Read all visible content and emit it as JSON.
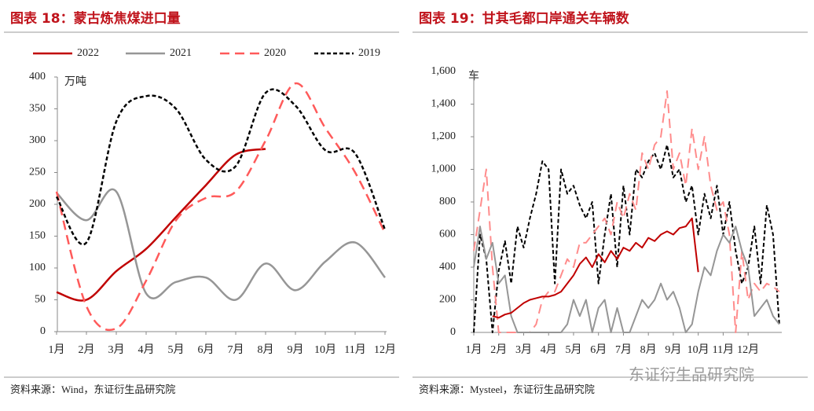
{
  "chart_data": [
    {
      "type": "line",
      "title": "图表 18：蒙古炼焦煤进口量",
      "ylabel": "万吨",
      "source": "资料来源：Wind，东证衍生品研究院",
      "categories": [
        "1月",
        "2月",
        "3月",
        "4月",
        "5月",
        "6月",
        "7月",
        "8月",
        "9月",
        "10月",
        "11月",
        "12月"
      ],
      "ylim": [
        0,
        400
      ],
      "yticks": [
        0,
        50,
        100,
        150,
        200,
        250,
        300,
        350,
        400
      ],
      "smooth": true,
      "series": [
        {
          "name": "2022",
          "color": "#c00000",
          "dash": "solid",
          "values": [
            62,
            50,
            95,
            130,
            180,
            230,
            278,
            287,
            null,
            null,
            null,
            null
          ]
        },
        {
          "name": "2021",
          "color": "#969696",
          "dash": "solid",
          "values": [
            218,
            175,
            220,
            60,
            78,
            85,
            50,
            107,
            65,
            110,
            140,
            85
          ]
        },
        {
          "name": "2020",
          "color": "#ff5a5a",
          "dash": "dashed",
          "values": [
            220,
            40,
            5,
            80,
            175,
            210,
            220,
            300,
            390,
            320,
            250,
            155
          ]
        },
        {
          "name": "2019",
          "color": "#000000",
          "dash": "dotted",
          "values": [
            212,
            140,
            330,
            370,
            350,
            270,
            260,
            375,
            355,
            285,
            280,
            160
          ]
        }
      ]
    },
    {
      "type": "line",
      "title": "图表 19：甘其毛都口岸通关车辆数",
      "ylabel": "车",
      "source": "资料来源：Mysteel，东证衍生品研究院",
      "x": [
        1,
        1.25,
        1.5,
        1.75,
        2,
        2.25,
        2.5,
        2.75,
        3,
        3.25,
        3.5,
        3.75,
        4,
        4.25,
        4.5,
        4.75,
        5,
        5.25,
        5.5,
        5.75,
        6,
        6.25,
        6.5,
        6.75,
        7,
        7.25,
        7.5,
        7.75,
        8,
        8.25,
        8.5,
        8.75,
        9,
        9.25,
        9.5,
        9.75,
        10,
        10.25,
        10.5,
        10.75,
        11,
        11.25,
        11.5,
        11.75,
        12,
        12.25,
        12.5,
        12.75,
        13,
        13.25
      ],
      "xlim": [
        1,
        13.35
      ],
      "xticks": [
        {
          "value": 1,
          "label": "1月"
        },
        {
          "value": 2,
          "label": "2月"
        },
        {
          "value": 3,
          "label": "3月"
        },
        {
          "value": 4,
          "label": "4月"
        },
        {
          "value": 5,
          "label": "5月"
        },
        {
          "value": 6,
          "label": "6月"
        },
        {
          "value": 7,
          "label": "7月"
        },
        {
          "value": 8,
          "label": "8月"
        },
        {
          "value": 9,
          "label": "9月"
        },
        {
          "value": 10,
          "label": "10月"
        },
        {
          "value": 11,
          "label": "11月"
        },
        {
          "value": 12,
          "label": "12月"
        }
      ],
      "ylim": [
        0,
        1600
      ],
      "yticks": [
        0,
        200,
        400,
        600,
        800,
        {
          "value": 1000,
          "label": "1,000"
        },
        {
          "value": 1200,
          "label": "1,200"
        },
        {
          "value": 1400,
          "label": "1,400"
        },
        {
          "value": 1600,
          "label": "1,600"
        }
      ],
      "smooth": false,
      "series": [
        {
          "name": "2019",
          "color": "#000000",
          "dash": "dotted",
          "values": [
            0,
            600,
            450,
            0,
            380,
            560,
            300,
            650,
            520,
            700,
            850,
            1050,
            1000,
            300,
            1000,
            850,
            900,
            780,
            700,
            800,
            300,
            600,
            850,
            400,
            900,
            600,
            1000,
            950,
            1050,
            1100,
            1000,
            1150,
            950,
            1000,
            800,
            900,
            600,
            850,
            700,
            900,
            600,
            800,
            500,
            300,
            400,
            650,
            300,
            780,
            600,
            50
          ]
        },
        {
          "name": "2020",
          "color": "#ff8c8c",
          "dash": "dashed",
          "values": [
            500,
            750,
            1000,
            400,
            0,
            0,
            0,
            0,
            0,
            0,
            50,
            200,
            250,
            250,
            350,
            450,
            400,
            550,
            550,
            600,
            650,
            700,
            600,
            800,
            700,
            850,
            750,
            1100,
            1000,
            1150,
            1200,
            1480,
            1000,
            1100,
            900,
            1250,
            1000,
            1200,
            900,
            750,
            800,
            600,
            0,
            500,
            200,
            300,
            250,
            300,
            280,
            250
          ]
        },
        {
          "name": "2021",
          "color": "#969696",
          "dash": "solid",
          "values": [
            400,
            650,
            450,
            550,
            300,
            350,
            100,
            0,
            0,
            0,
            0,
            0,
            0,
            0,
            0,
            50,
            200,
            100,
            200,
            0,
            150,
            200,
            0,
            150,
            0,
            0,
            100,
            200,
            150,
            200,
            300,
            200,
            250,
            150,
            0,
            50,
            250,
            400,
            350,
            500,
            600,
            550,
            650,
            500,
            400,
            100,
            150,
            200,
            100,
            50
          ]
        },
        {
          "name": "2022",
          "color": "#c00000",
          "dash": "solid",
          "values": [
            null,
            null,
            null,
            100,
            90,
            110,
            120,
            150,
            180,
            200,
            210,
            220,
            220,
            230,
            250,
            300,
            350,
            420,
            460,
            400,
            480,
            430,
            500,
            450,
            520,
            500,
            550,
            520,
            580,
            560,
            600,
            620,
            600,
            640,
            650,
            700,
            370,
            null,
            null,
            null,
            null,
            null,
            null,
            null,
            null,
            null,
            null,
            null,
            null,
            null
          ]
        }
      ]
    }
  ],
  "watermark": "东证衍生品研究院"
}
